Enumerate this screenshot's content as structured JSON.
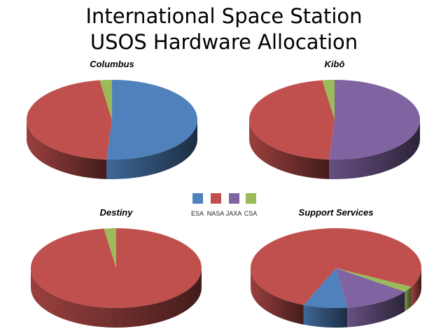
{
  "chart_data": {
    "type": "pie",
    "title": [
      "International Space Station",
      "USOS Hardware Allocation"
    ],
    "legend": {
      "position": "center",
      "entries": [
        {
          "name": "ESA",
          "color": "#4F81BD"
        },
        {
          "name": "NASA",
          "color": "#C0504D"
        },
        {
          "name": "JAXA",
          "color": "#8064A2"
        },
        {
          "name": "CSA",
          "color": "#9BBB59"
        }
      ]
    },
    "charts": [
      {
        "title": "Columbus",
        "style": "3d",
        "slices": [
          {
            "name": "ESA",
            "value": 51
          },
          {
            "name": "NASA",
            "value": 46.7
          },
          {
            "name": "CSA",
            "value": 2.3
          }
        ]
      },
      {
        "title": "Kibō",
        "style": "3d",
        "slices": [
          {
            "name": "JAXA",
            "value": 51
          },
          {
            "name": "NASA",
            "value": 46.7
          },
          {
            "name": "CSA",
            "value": 2.3
          }
        ]
      },
      {
        "title": "Destiny",
        "style": "3d",
        "slices": [
          {
            "name": "NASA",
            "value": 97.7
          },
          {
            "name": "CSA",
            "value": 2.3
          }
        ]
      },
      {
        "title": "Support Services",
        "style": "3d",
        "slices": [
          {
            "name": "CSA",
            "value": 2.3
          },
          {
            "name": "JAXA",
            "value": 12.8
          },
          {
            "name": "ESA",
            "value": 8.3
          },
          {
            "name": "NASA",
            "value": 76.6
          }
        ]
      }
    ]
  }
}
